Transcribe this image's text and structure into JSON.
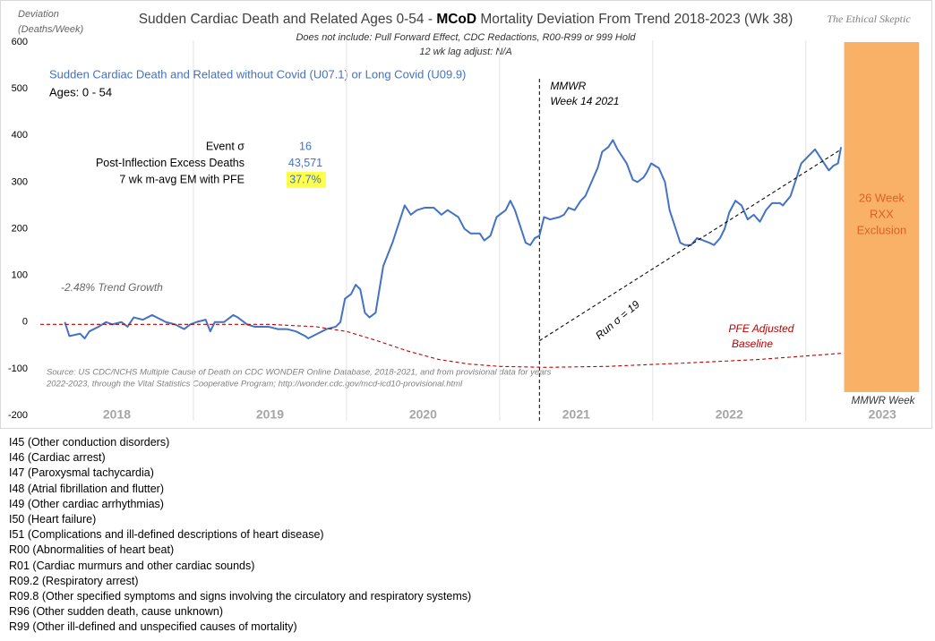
{
  "chart_data": {
    "type": "line",
    "title_parts": [
      "Sudden Cardiac Death and Related Ages 0-54 - ",
      "MCoD",
      " Mortality Deviation From Trend  2018-2023 (Wk 38)"
    ],
    "subtitle_lines": [
      "Does not include: Pull Forward Effect,  CDC Redactions, R00-R99 or 999 Hold",
      "12 wk lag adjust: N/A"
    ],
    "watermark": "The Ethical Skeptic",
    "ylabel_lines": [
      "Deviation",
      "(Deaths/Week)"
    ],
    "xlabel": "MMWR Week",
    "ages_label": "Ages: 0 - 54",
    "stats": [
      {
        "label": "Event σ",
        "value": 16
      },
      {
        "label": "Post-Inflection Excess Deaths",
        "value": 43571,
        "value_label": "43,571"
      },
      {
        "label": "7 wk m-avg EM with PFE",
        "value": 37.7,
        "value_label": "37.7%",
        "highlight": "#ffff4d"
      }
    ],
    "annotations": {
      "trend_growth": "-2.48% Trend Growth",
      "source_lines": [
        "Source: US CDC/NCHS Multiple Cause of Death on CDC WONDER Online Database, 2018-2021, and from provisional data for years",
        "2022-2023, through the Vital Statistics Cooperative Program; http://wonder.cdc.gov/mcd-icd10-provisional.html"
      ]
    },
    "vline": {
      "x": 2021.26,
      "label_lines": [
        "MMWR",
        "Week 14 2021"
      ]
    },
    "exclusion": {
      "x0": 2023.25,
      "x1": 2023.74,
      "y0": -150,
      "y1": 600,
      "color": "#f9b067",
      "label_lines": [
        "26 Week",
        "RXX",
        "Exclusion"
      ]
    },
    "xlim": [
      2018,
      2023.75
    ],
    "ylim": [
      -200,
      600
    ],
    "xticks": [
      {
        "value": 2018.5,
        "label": "2018"
      },
      {
        "value": 2019.5,
        "label": "2019"
      },
      {
        "value": 2020.5,
        "label": "2020"
      },
      {
        "value": 2021.5,
        "label": "2021"
      },
      {
        "value": 2022.5,
        "label": "2022"
      },
      {
        "value": 2023.5,
        "label": "2023"
      }
    ],
    "xgrid": [
      2019,
      2020,
      2021,
      2022,
      2023
    ],
    "yticks": [
      -200,
      -100,
      0,
      100,
      200,
      300,
      400,
      500,
      600
    ],
    "grid": false,
    "series": [
      {
        "name": "Sudden Cardiac Death and Related without Covid (U07.1) or Long Covid (U09.9)",
        "color": "#4472c4",
        "dash": false,
        "x": [
          2018.16,
          2018.19,
          2018.26,
          2018.29,
          2018.32,
          2018.38,
          2018.43,
          2018.47,
          2018.53,
          2018.57,
          2018.61,
          2018.67,
          2018.73,
          2018.76,
          2018.82,
          2018.88,
          2018.94,
          2018.98,
          2019.02,
          2019.08,
          2019.11,
          2019.14,
          2019.2,
          2019.26,
          2019.29,
          2019.35,
          2019.4,
          2019.49,
          2019.55,
          2019.61,
          2019.67,
          2019.73,
          2019.75,
          2019.78,
          2019.81,
          2019.87,
          2019.93,
          2019.96,
          2019.99,
          2020.03,
          2020.06,
          2020.09,
          2020.12,
          2020.15,
          2020.19,
          2020.24,
          2020.3,
          2020.33,
          2020.38,
          2020.42,
          2020.46,
          2020.51,
          2020.57,
          2020.62,
          2020.66,
          2020.73,
          2020.77,
          2020.81,
          2020.87,
          2020.9,
          2020.94,
          2020.98,
          2021.04,
          2021.07,
          2021.1,
          2021.14,
          2021.17,
          2021.2,
          2021.23,
          2021.26,
          2021.29,
          2021.33,
          2021.39,
          2021.42,
          2021.45,
          2021.49,
          2021.53,
          2021.56,
          2021.6,
          2021.64,
          2021.67,
          2021.71,
          2021.74,
          2021.77,
          2021.83,
          2021.87,
          2021.9,
          2021.94,
          2021.96,
          2021.99,
          2022.04,
          2022.08,
          2022.11,
          2022.15,
          2022.18,
          2022.21,
          2022.25,
          2022.29,
          2022.33,
          2022.37,
          2022.4,
          2022.44,
          2022.47,
          2022.5,
          2022.54,
          2022.58,
          2022.62,
          2022.66,
          2022.7,
          2022.74,
          2022.78,
          2022.83,
          2022.85,
          2022.9,
          2022.93,
          2022.97,
          2023.0,
          2023.03,
          2023.06,
          2023.09,
          2023.12,
          2023.15,
          2023.18,
          2023.21,
          2023.23
        ],
        "values": [
          0,
          -30,
          -25,
          -35,
          -20,
          -10,
          0,
          -5,
          0,
          -10,
          10,
          5,
          15,
          10,
          0,
          -5,
          -15,
          -5,
          0,
          5,
          -20,
          0,
          0,
          15,
          10,
          -5,
          -10,
          -10,
          -15,
          -15,
          -20,
          -30,
          -35,
          -30,
          -25,
          -15,
          -10,
          0,
          50,
          60,
          80,
          70,
          20,
          10,
          20,
          120,
          170,
          200,
          250,
          230,
          240,
          245,
          245,
          230,
          240,
          225,
          200,
          190,
          190,
          175,
          185,
          225,
          240,
          260,
          240,
          200,
          170,
          165,
          180,
          185,
          225,
          220,
          225,
          230,
          245,
          240,
          260,
          270,
          300,
          330,
          365,
          375,
          390,
          370,
          340,
          305,
          300,
          310,
          320,
          340,
          330,
          300,
          240,
          200,
          170,
          165,
          165,
          180,
          175,
          170,
          165,
          180,
          200,
          235,
          260,
          250,
          220,
          230,
          215,
          240,
          255,
          255,
          250,
          270,
          300,
          340,
          350,
          360,
          370,
          355,
          340,
          325,
          335,
          340,
          375
        ]
      },
      {
        "name": "PFE Adjusted Baseline",
        "name_lines": [
          "PFE Adjusted",
          "Baseline"
        ],
        "color": "#c00000",
        "dash": true,
        "x": [
          2018.0,
          2019.5,
          2019.8,
          2020.0,
          2020.2,
          2020.4,
          2020.6,
          2020.8,
          2021.0,
          2021.3,
          2021.7,
          2022.2,
          2022.7,
          2023.23
        ],
        "values": [
          -5,
          -5,
          -10,
          -20,
          -40,
          -62,
          -80,
          -90,
          -95,
          -97,
          -95,
          -88,
          -80,
          -67
        ]
      },
      {
        "name": "Run σ = 19",
        "color": "#000000",
        "dash": true,
        "x": [
          2021.26,
          2023.23
        ],
        "values": [
          -40,
          370
        ]
      }
    ]
  },
  "code_list": [
    "I45 (Other conduction  disorders)",
    "I46 (Cardiac arrest)",
    "I47 (Paroxysmal tachycardia)",
    "I48 (Atrial fibrillation and flutter)",
    "I49 (Other cardiac arrhythmias)",
    "I50 (Heart failure)",
    "I51 (Complications  and ill-defined  descriptions of heart disease)",
    "R00 (Abnormalities of heart beat)",
    "R01 (Cardiac murmurs and other cardiac sounds)",
    "R09.2 (Respiratory arrest)",
    "R09.8 (Other specified symptoms and signs involving  the circulatory and respiratory systems)",
    "R96 (Other sudden death, cause unknown)",
    "R99 (Other ill-defined  and unspecified causes of mortality)"
  ]
}
